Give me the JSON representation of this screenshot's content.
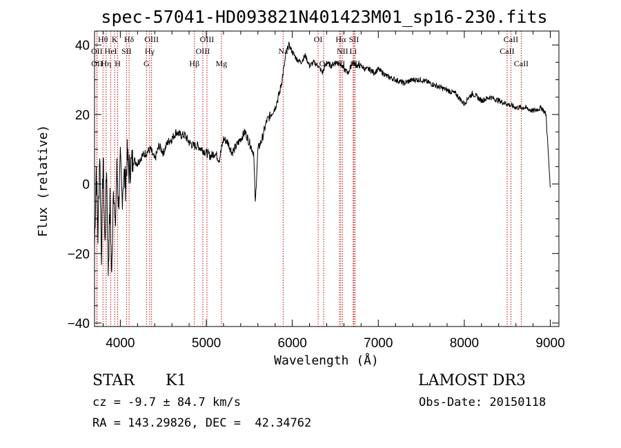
{
  "chart_data": {
    "type": "line",
    "title": "spec-57041-HD093821N401423M01_sp16-230.fits",
    "xlabel": "Wavelength (Å)",
    "ylabel": "Flux (relative)",
    "xlim": [
      3700,
      9100
    ],
    "ylim": [
      -41,
      44
    ],
    "x_ticks": [
      4000,
      5000,
      6000,
      7000,
      8000,
      9000
    ],
    "y_ticks": [
      -40,
      -20,
      0,
      20,
      40
    ],
    "series": [
      {
        "name": "flux",
        "x": [
          3700,
          3720,
          3740,
          3760,
          3780,
          3800,
          3820,
          3840,
          3860,
          3880,
          3900,
          3920,
          3940,
          3960,
          3980,
          4000,
          4020,
          4040,
          4060,
          4080,
          4100,
          4150,
          4200,
          4250,
          4300,
          4350,
          4400,
          4450,
          4500,
          4550,
          4600,
          4650,
          4700,
          4750,
          4800,
          4850,
          4900,
          4950,
          5000,
          5050,
          5100,
          5150,
          5200,
          5250,
          5300,
          5350,
          5400,
          5450,
          5500,
          5550,
          5570,
          5580,
          5600,
          5650,
          5700,
          5750,
          5800,
          5850,
          5880,
          5900,
          5930,
          5960,
          6000,
          6050,
          6100,
          6150,
          6200,
          6250,
          6300,
          6350,
          6400,
          6450,
          6500,
          6550,
          6600,
          6650,
          6700,
          6750,
          6800,
          6850,
          6900,
          6950,
          7000,
          7100,
          7200,
          7300,
          7400,
          7500,
          7600,
          7700,
          7800,
          7900,
          8000,
          8050,
          8100,
          8200,
          8300,
          8400,
          8500,
          8600,
          8700,
          8800,
          8900,
          8950,
          9000
        ],
        "values": [
          -18,
          5,
          -15,
          10,
          -20,
          8,
          -18,
          6,
          -25,
          -5,
          -28,
          2,
          -14,
          4,
          -6,
          6,
          -4,
          3,
          0,
          8,
          4,
          7,
          6,
          8,
          9,
          10,
          7,
          11,
          9,
          12,
          13,
          15,
          14,
          14,
          12,
          11,
          11,
          10,
          9,
          8,
          9,
          7,
          13,
          12,
          9,
          11,
          13,
          15,
          12,
          9,
          -6,
          0,
          10,
          13,
          18,
          20,
          22,
          26,
          30,
          33,
          38,
          40,
          38,
          36,
          35,
          37,
          34,
          35,
          34,
          32,
          35,
          34,
          35,
          35,
          33,
          32,
          35,
          34,
          34,
          33,
          33,
          32,
          33,
          31,
          30,
          29,
          30,
          30,
          29,
          28,
          27,
          26,
          23,
          25,
          26,
          24,
          25,
          24,
          23,
          22,
          22,
          21,
          22,
          20,
          -1
        ],
        "units": "relative flux"
      }
    ],
    "spectral_lines": [
      {
        "label": "Hθ",
        "x": 3798,
        "row": 0
      },
      {
        "label": "OII",
        "x": 3727,
        "row": 1
      },
      {
        "label": "OII",
        "x": 3729,
        "row": 2
      },
      {
        "label": "K",
        "x": 3934,
        "row": 0
      },
      {
        "label": "HeI",
        "x": 3889,
        "row": 1
      },
      {
        "label": "Hη",
        "x": 3835,
        "row": 2
      },
      {
        "label": "H",
        "x": 3969,
        "row": 2
      },
      {
        "label": "SII",
        "x": 4072,
        "row": 1
      },
      {
        "label": "Hδ",
        "x": 4102,
        "row": 0
      },
      {
        "label": "OIII",
        "x": 4363,
        "row": 0
      },
      {
        "label": "Hγ",
        "x": 4341,
        "row": 1
      },
      {
        "label": "G",
        "x": 4304,
        "row": 2
      },
      {
        "label": "Hβ",
        "x": 4861,
        "row": 2
      },
      {
        "label": "OIII",
        "x": 5007,
        "row": 0
      },
      {
        "label": "OIII",
        "x": 4959,
        "row": 1
      },
      {
        "label": "Mg",
        "x": 5175,
        "row": 2
      },
      {
        "label": "Na",
        "x": 5893,
        "row": 1
      },
      {
        "label": "OI",
        "x": 6300,
        "row": 0
      },
      {
        "label": "OI",
        "x": 6364,
        "row": 2
      },
      {
        "label": "Hα",
        "x": 6563,
        "row": 0
      },
      {
        "label": "SII",
        "x": 6717,
        "row": 0
      },
      {
        "label": "NII",
        "x": 6583,
        "row": 1
      },
      {
        "label": "Li",
        "x": 6708,
        "row": 1
      },
      {
        "label": "NII",
        "x": 6548,
        "row": 2
      },
      {
        "label": "SII",
        "x": 6731,
        "row": 2
      },
      {
        "label": "CaII",
        "x": 8542,
        "row": 0
      },
      {
        "label": "CaII",
        "x": 8498,
        "row": 1
      },
      {
        "label": "CaII",
        "x": 8662,
        "row": 2
      }
    ]
  },
  "info": {
    "class_label": "STAR",
    "subclass": "K1",
    "survey": "LAMOST DR3",
    "redshift_line": "cz = -9.7 ± 84.7 km/s",
    "obs_date": "Obs-Date: 20150118",
    "coords": "RA = 143.29826, DEC =  42.34762"
  }
}
